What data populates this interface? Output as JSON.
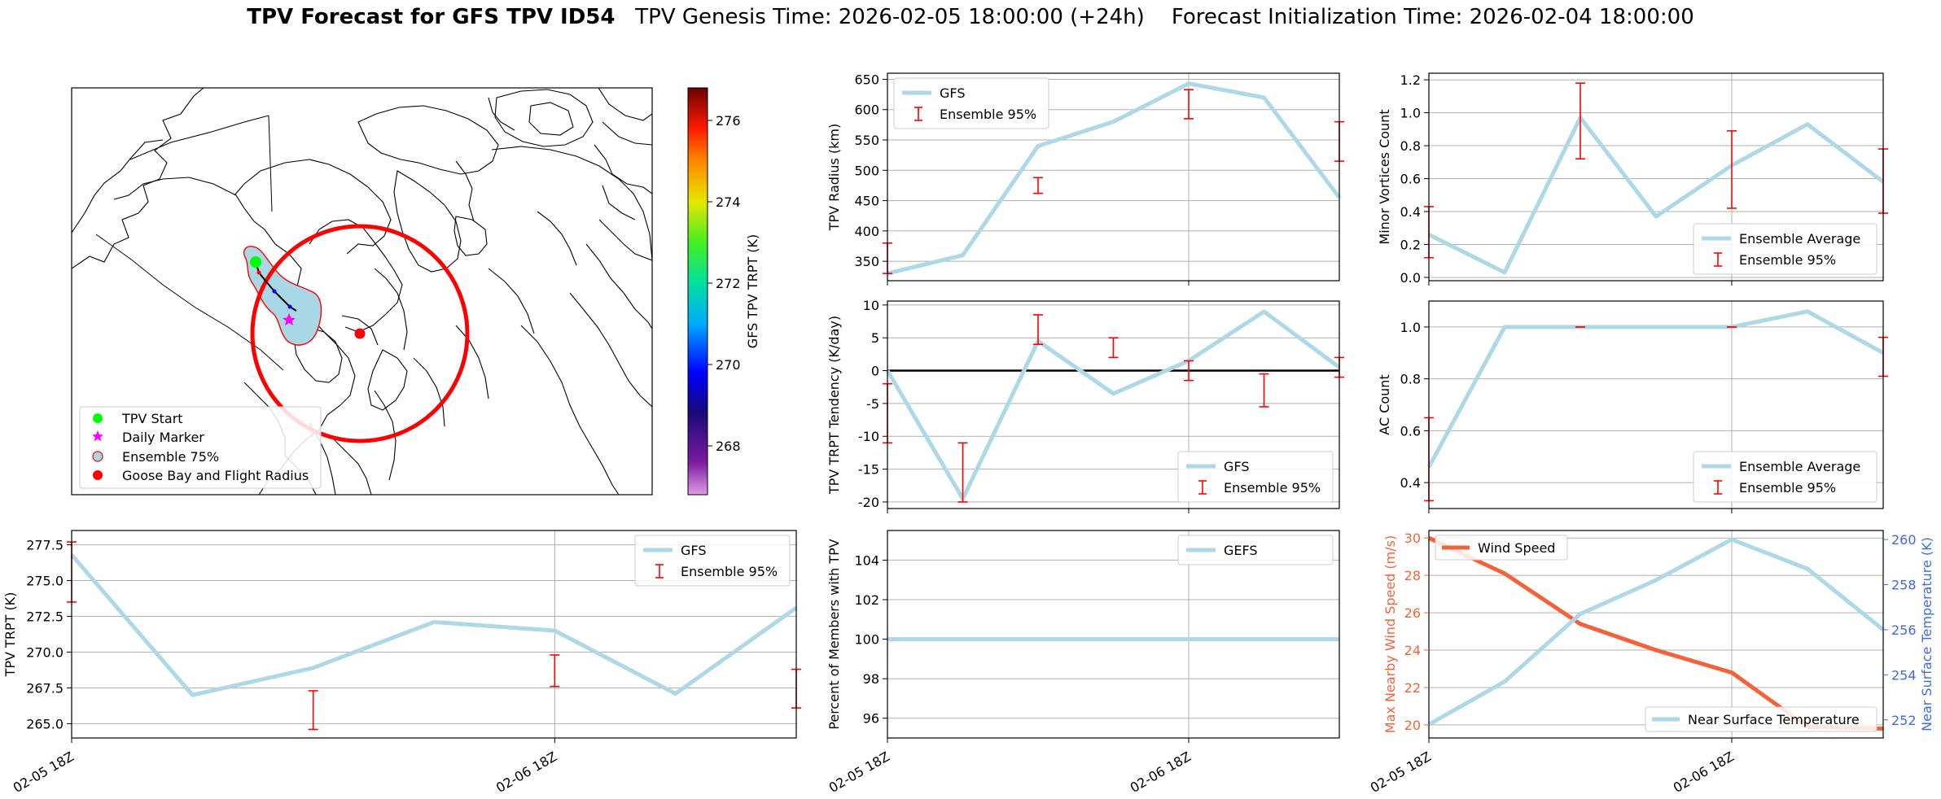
{
  "header": {
    "title_bold": "TPV Forecast for GFS TPV ID54",
    "genesis": "TPV Genesis Time: 2026-02-05 18:00:00 (+24h)",
    "init": "Forecast Initialization Time: 2026-02-04 18:00:00"
  },
  "colors": {
    "line": "#add8e6",
    "err": "#ff0000",
    "wind": "#f4623a",
    "temp_axis": "#4169e1"
  },
  "map": {
    "legend": [
      "TPV Start",
      "Daily Marker",
      "Ensemble 75%",
      "Goose Bay and Flight Radius"
    ],
    "colorbar": {
      "label": "GFS TPV TRPT (K)",
      "ticks": [
        268,
        270,
        272,
        274,
        276
      ],
      "range": [
        266.8,
        276.8
      ]
    }
  },
  "chart_data": [
    {
      "id": "radius",
      "type": "line",
      "ylabel": "TPV Radius (km)",
      "x": [
        0,
        0.5,
        1,
        1.5,
        2,
        2.5,
        3
      ],
      "series": [
        {
          "name": "GFS",
          "values": [
            330,
            360,
            540,
            580,
            643,
            620,
            455
          ]
        }
      ],
      "ensemble95": [
        {
          "x": 0,
          "low": 330,
          "high": 380
        },
        {
          "x": 1,
          "low": 462,
          "high": 488
        },
        {
          "x": 2,
          "low": 585,
          "high": 633
        },
        {
          "x": 3,
          "low": 515,
          "high": 580
        }
      ],
      "ylim": [
        318,
        660
      ],
      "yticks": [
        350,
        400,
        450,
        500,
        550,
        600,
        650
      ],
      "legend": [
        "GFS",
        "Ensemble 95%"
      ],
      "legend_pos": "upper-left"
    },
    {
      "id": "minor",
      "type": "line",
      "ylabel": "Minor Vortices Count",
      "x": [
        0,
        0.5,
        1,
        1.5,
        2,
        2.5,
        3
      ],
      "series": [
        {
          "name": "Ensemble Average",
          "values": [
            0.26,
            0.03,
            0.97,
            0.37,
            0.68,
            0.93,
            0.58
          ]
        }
      ],
      "ensemble95": [
        {
          "x": 0,
          "low": 0.12,
          "high": 0.43
        },
        {
          "x": 1,
          "low": 0.72,
          "high": 1.18
        },
        {
          "x": 2,
          "low": 0.42,
          "high": 0.89
        },
        {
          "x": 3,
          "low": 0.39,
          "high": 0.78
        }
      ],
      "ylim": [
        -0.02,
        1.24
      ],
      "yticks": [
        0.0,
        0.2,
        0.4,
        0.6,
        0.8,
        1.0,
        1.2
      ],
      "legend": [
        "Ensemble Average",
        "Ensemble 95%"
      ],
      "legend_pos": "lower-right"
    },
    {
      "id": "tendency",
      "type": "line",
      "ylabel": "TPV TRPT Tendency (K/day)",
      "x": [
        0,
        0.5,
        1,
        1.5,
        2,
        2.5,
        3
      ],
      "series": [
        {
          "name": "GFS",
          "values": [
            0,
            -19.5,
            4.5,
            -3.5,
            1.5,
            9.0,
            0.5
          ]
        }
      ],
      "ensemble95": [
        {
          "x": 0,
          "low": -11,
          "high": -2
        },
        {
          "x": 0.5,
          "low": -20,
          "high": -11
        },
        {
          "x": 1,
          "low": 4,
          "high": 8.5
        },
        {
          "x": 1.5,
          "low": 2,
          "high": 5
        },
        {
          "x": 2,
          "low": -1.5,
          "high": 1.5
        },
        {
          "x": 2.5,
          "low": -5.5,
          "high": -0.5
        },
        {
          "x": 3,
          "low": -1,
          "high": 2
        }
      ],
      "zero_line": true,
      "ylim": [
        -21,
        10.6
      ],
      "yticks": [
        -20,
        -15,
        -10,
        -5,
        0,
        5,
        10
      ],
      "legend": [
        "GFS",
        "Ensemble 95%"
      ],
      "legend_pos": "lower-right"
    },
    {
      "id": "ac",
      "type": "line",
      "ylabel": "AC Count",
      "x": [
        0,
        0.5,
        1,
        1.5,
        2,
        2.5,
        3
      ],
      "series": [
        {
          "name": "Ensemble Average",
          "values": [
            0.46,
            1.0,
            1.0,
            1.0,
            1.0,
            1.06,
            0.9
          ]
        }
      ],
      "ensemble95": [
        {
          "x": 0,
          "low": 0.33,
          "high": 0.65
        },
        {
          "x": 1,
          "low": 1.0,
          "high": 1.0
        },
        {
          "x": 2,
          "low": 1.0,
          "high": 1.0
        },
        {
          "x": 3,
          "low": 0.81,
          "high": 0.96
        }
      ],
      "ylim": [
        0.3,
        1.1
      ],
      "yticks": [
        0.4,
        0.6,
        0.8,
        1.0
      ],
      "legend": [
        "Ensemble Average",
        "Ensemble 95%"
      ],
      "legend_pos": "lower-right"
    },
    {
      "id": "trpt",
      "type": "line",
      "ylabel": "TPV TRPT (K)",
      "x": [
        0,
        0.5,
        1,
        1.5,
        2,
        2.5,
        3
      ],
      "series": [
        {
          "name": "GFS",
          "values": [
            276.8,
            267.0,
            268.9,
            272.1,
            271.5,
            267.1,
            273.1
          ]
        }
      ],
      "ensemble95": [
        {
          "x": 0,
          "low": 273.5,
          "high": 277.7
        },
        {
          "x": 1,
          "low": 264.6,
          "high": 267.3
        },
        {
          "x": 2,
          "low": 267.6,
          "high": 269.8
        },
        {
          "x": 3,
          "low": 266.1,
          "high": 268.8
        }
      ],
      "ylim": [
        264,
        278.5
      ],
      "yticks": [
        265.0,
        267.5,
        270.0,
        272.5,
        275.0,
        277.5
      ],
      "xticks": [
        0,
        2
      ],
      "xticklabels": [
        "02-05 18Z",
        "02-06 18Z"
      ],
      "legend": [
        "GFS",
        "Ensemble 95%"
      ],
      "legend_pos": "upper-right"
    },
    {
      "id": "members",
      "type": "line",
      "ylabel": "Percent of Members with TPV",
      "x": [
        0,
        0.5,
        1,
        1.5,
        2,
        2.5,
        3
      ],
      "series": [
        {
          "name": "GEFS",
          "values": [
            100,
            100,
            100,
            100,
            100,
            100,
            100
          ]
        }
      ],
      "ylim": [
        95,
        105.5
      ],
      "yticks": [
        96,
        98,
        100,
        102,
        104
      ],
      "xticks": [
        0,
        2
      ],
      "xticklabels": [
        "02-05 18Z",
        "02-06 18Z"
      ],
      "legend": [
        "GEFS"
      ],
      "legend_pos": "upper-right"
    },
    {
      "id": "wind",
      "type": "line",
      "ylabel": "Max Nearby Wind Speed (m/s)",
      "ylabel2": "Near Surface Temperature (K)",
      "x": [
        0,
        0.5,
        1,
        1.5,
        2,
        2.5,
        3
      ],
      "series": [
        {
          "name": "Wind Speed",
          "axis": "left",
          "values": [
            30.0,
            28.1,
            25.4,
            24.0,
            22.8,
            19.9,
            19.8
          ]
        },
        {
          "name": "Near Surface Temperature",
          "axis": "right",
          "values": [
            251.8,
            253.7,
            256.7,
            258.2,
            260.0,
            258.7,
            256.0
          ]
        }
      ],
      "ylim": [
        19.3,
        30.4
      ],
      "yticks": [
        20,
        22,
        24,
        26,
        28,
        30
      ],
      "ylim2": [
        251.2,
        260.4
      ],
      "yticks2": [
        252,
        254,
        256,
        258,
        260
      ],
      "xticks": [
        0,
        2
      ],
      "xticklabels": [
        "02-05 18Z",
        "02-06 18Z"
      ],
      "legend": [
        "Wind Speed",
        "Near Surface Temperature"
      ]
    }
  ]
}
